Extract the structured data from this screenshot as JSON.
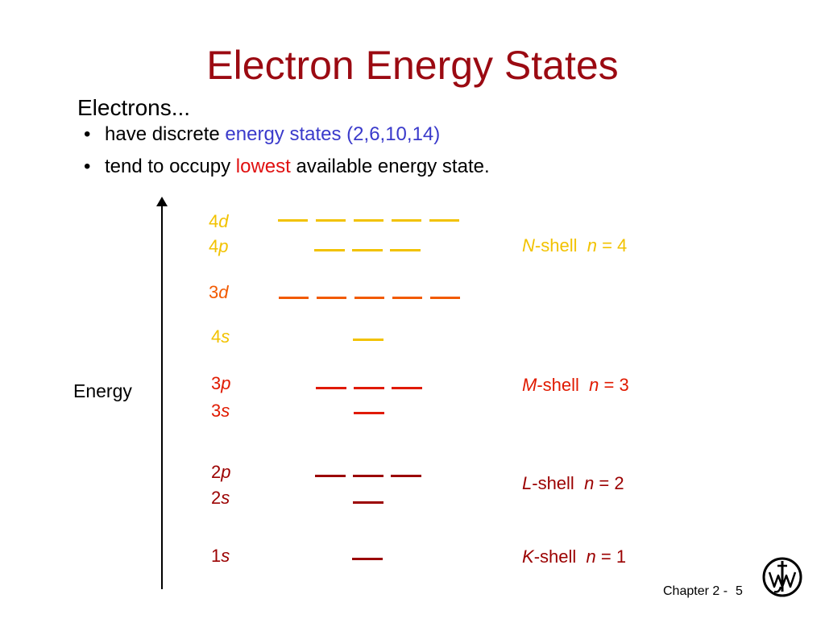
{
  "title": "Electron Energy States",
  "intro": "Electrons...",
  "bullets": [
    {
      "marker": "•",
      "pre": "have discrete ",
      "emph": "energy states",
      "post": "  (2,6,10,14)"
    },
    {
      "marker": "•",
      "pre": "tend to occupy ",
      "emph": "lowest",
      "post": " available energy state."
    }
  ],
  "axis_label": "Energy",
  "colors": {
    "title": "#9b0a12",
    "blue_text": "#3a3acb",
    "red_text": "#e01010",
    "N_shell": "#f2c200",
    "d3": "#f25a00",
    "s4": "#f2c200",
    "M_shell": "#e01a00",
    "L_shell": "#9b0000",
    "K_shell": "#9b0000"
  },
  "orbitals": [
    {
      "num": "4",
      "letter": "d",
      "count": 5
    },
    {
      "num": "4",
      "letter": "p",
      "count": 3
    },
    {
      "num": "3",
      "letter": "d",
      "count": 5
    },
    {
      "num": "4",
      "letter": "s",
      "count": 1
    },
    {
      "num": "3",
      "letter": "p",
      "count": 3
    },
    {
      "num": "3",
      "letter": "s",
      "count": 1
    },
    {
      "num": "2",
      "letter": "p",
      "count": 3
    },
    {
      "num": "2",
      "letter": "s",
      "count": 1
    },
    {
      "num": "1",
      "letter": "s",
      "count": 1
    }
  ],
  "shells": [
    {
      "letter": "N",
      "rest": "-shell",
      "n_var": "n",
      "eq": " = 4"
    },
    {
      "letter": "M",
      "rest": "-shell",
      "n_var": "n",
      "eq": " = 3"
    },
    {
      "letter": "L",
      "rest": "-shell",
      "n_var": "n",
      "eq": " = 2"
    },
    {
      "letter": "K",
      "rest": "-shell",
      "n_var": "n",
      "eq": " = 1"
    }
  ],
  "footer": {
    "chapter": "Chapter 2 -",
    "page": "5"
  },
  "logo": "wiley-logo"
}
